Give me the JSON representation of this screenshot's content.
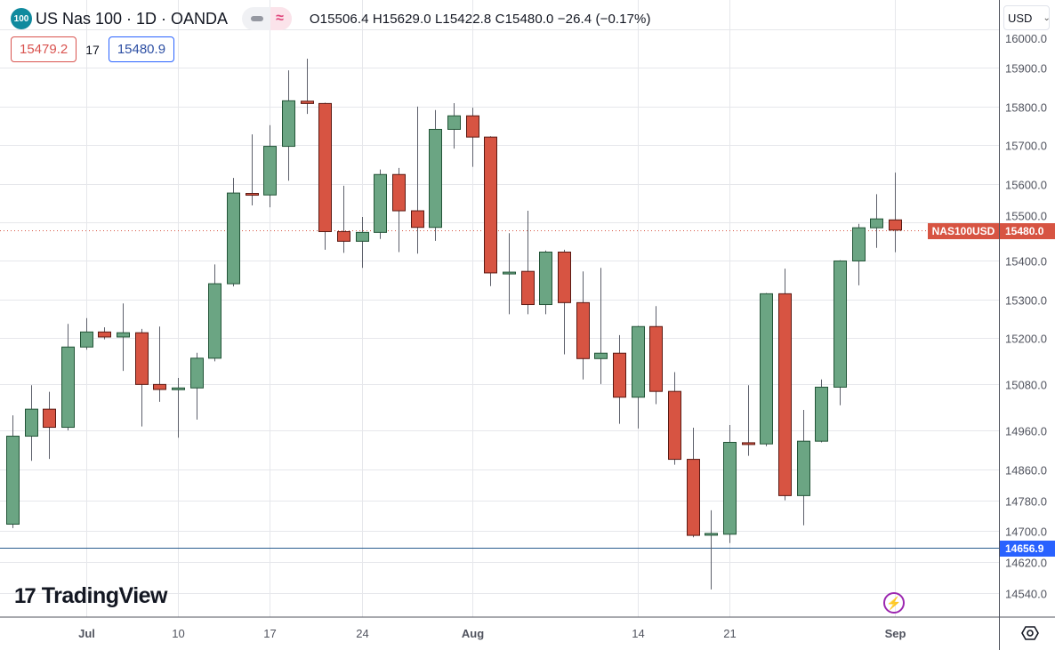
{
  "header": {
    "symbol_badge": "100",
    "title": "US Nas 100 · 1D · OANDA",
    "wave_icon": "≈",
    "ohlc": {
      "o_label": "O",
      "o": "15506.4",
      "h_label": "H",
      "h": "15629.0",
      "l_label": "L",
      "l": "15422.8",
      "c_label": "C",
      "c": "15480.0",
      "change": "−26.4 (−0.17%)"
    },
    "sell_price": "15479.2",
    "spread": "17",
    "buy_price": "15480.9",
    "currency": "USD"
  },
  "branding": {
    "logo_mark": "17",
    "logo_text": "TradingView"
  },
  "colors": {
    "up": "#6ba583",
    "down": "#d75442",
    "up_border": "#225437",
    "down_border": "#5b1a13",
    "price_line": "#d75442",
    "hline": "#2962ff",
    "grid": "#e6e7eb"
  },
  "chart_data": {
    "type": "candlestick",
    "symbol": "NAS100USD",
    "ylim": [
      14468,
      15984
    ],
    "y_ticks": [
      "16000.0",
      "15900.0",
      "15800.0",
      "15700.0",
      "15600.0",
      "15500.0",
      "15400.0",
      "15300.0",
      "15200.0",
      "15080.0",
      "14960.0",
      "14860.0",
      "14780.0",
      "14700.0",
      "14620.0",
      "14540.0"
    ],
    "x_ticks": [
      {
        "label": "Jul",
        "index": 4
      },
      {
        "label": "10",
        "index": 9
      },
      {
        "label": "17",
        "index": 14
      },
      {
        "label": "24",
        "index": 19
      },
      {
        "label": "Aug",
        "index": 25
      },
      {
        "label": "14",
        "index": 34
      },
      {
        "label": "21",
        "index": 39
      },
      {
        "label": "Sep",
        "index": 48
      }
    ],
    "last_price": {
      "label": "NAS100USD",
      "value": "15480.0",
      "price": 15480.0
    },
    "horizontal_line": {
      "value": "14656.9",
      "price": 14656.9
    },
    "candles_ohlc": [
      [
        14718,
        15000,
        14708,
        14946
      ],
      [
        14946,
        15078,
        14882,
        15016
      ],
      [
        15016,
        15061,
        14887,
        14969
      ],
      [
        14969,
        15237,
        14961,
        15177
      ],
      [
        15177,
        15252,
        15170,
        15216
      ],
      [
        15216,
        15228,
        15197,
        15203
      ],
      [
        15203,
        15290,
        15115,
        15214
      ],
      [
        15214,
        15224,
        14971,
        15080
      ],
      [
        15080,
        15230,
        15035,
        15067
      ],
      [
        15067,
        15097,
        14942,
        15071
      ],
      [
        15071,
        15162,
        14989,
        15148
      ],
      [
        15148,
        15391,
        15140,
        15341
      ],
      [
        15341,
        15615,
        15334,
        15576
      ],
      [
        15575,
        15728,
        15544,
        15571
      ],
      [
        15571,
        15752,
        15539,
        15697
      ],
      [
        15697,
        15894,
        15608,
        15815
      ],
      [
        15814,
        15924,
        15781,
        15808
      ],
      [
        15808,
        15810,
        15429,
        15476
      ],
      [
        15476,
        15595,
        15421,
        15451
      ],
      [
        15451,
        15514,
        15382,
        15474
      ],
      [
        15474,
        15637,
        15457,
        15624
      ],
      [
        15624,
        15641,
        15423,
        15530
      ],
      [
        15530,
        15800,
        15419,
        15487
      ],
      [
        15487,
        15791,
        15452,
        15741
      ],
      [
        15741,
        15809,
        15691,
        15776
      ],
      [
        15776,
        15797,
        15644,
        15721
      ],
      [
        15721,
        15723,
        15335,
        15369
      ],
      [
        15371,
        15472,
        15262,
        15371
      ],
      [
        15373,
        15530,
        15262,
        15287
      ],
      [
        15287,
        15427,
        15262,
        15423
      ],
      [
        15423,
        15429,
        15158,
        15292
      ],
      [
        15292,
        15373,
        15093,
        15147
      ],
      [
        15147,
        15382,
        15081,
        15161
      ],
      [
        15161,
        15208,
        14978,
        15047
      ],
      [
        15047,
        15232,
        14966,
        15230
      ],
      [
        15230,
        15283,
        15029,
        15062
      ],
      [
        15062,
        15112,
        14872,
        14886
      ],
      [
        14886,
        14968,
        14684,
        14689
      ],
      [
        14690,
        14754,
        14549,
        14694
      ],
      [
        14692,
        14975,
        14669,
        14930
      ],
      [
        14929,
        15078,
        14895,
        14926
      ],
      [
        14926,
        15317,
        14920,
        15315
      ],
      [
        15315,
        15380,
        14780,
        14792
      ],
      [
        14792,
        15014,
        14715,
        14933
      ],
      [
        14933,
        15093,
        14930,
        15073
      ],
      [
        15073,
        15402,
        15026,
        15400
      ],
      [
        15400,
        15496,
        15337,
        15486
      ],
      [
        15486,
        15573,
        15434,
        15509
      ],
      [
        15506.4,
        15629.0,
        15422.8,
        15480.0
      ]
    ]
  }
}
